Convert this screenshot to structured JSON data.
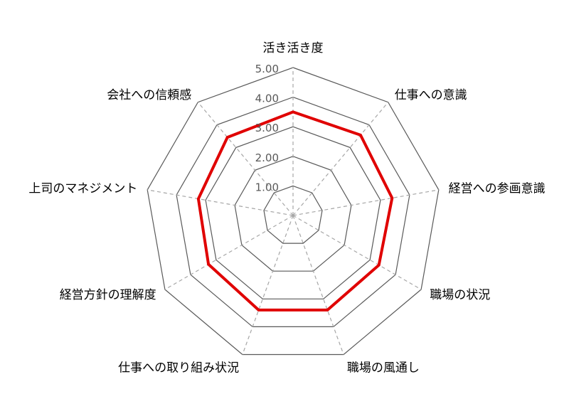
{
  "chart_data": {
    "type": "radar",
    "categories": [
      "活き活き度",
      "仕事への意識",
      "経営への参画意識",
      "職場の状況",
      "職場の風通し",
      "仕事への取り組み状況",
      "経営方針の理解度",
      "上司のマネジメント",
      "会社への信頼感"
    ],
    "series": [
      {
        "values": [
          3.5,
          3.55,
          3.4,
          3.35,
          3.4,
          3.4,
          3.3,
          3.25,
          3.45
        ],
        "color": "#e00000"
      }
    ],
    "rlim": [
      0,
      5
    ],
    "ticks": [
      1,
      2,
      3,
      4,
      5
    ],
    "tick_labels": [
      "1.00",
      "2.00",
      "3.00",
      "4.00",
      "5.00"
    ],
    "grid": true,
    "grid_color": "#595959",
    "spoke_color": "#a6a6a6",
    "title": "",
    "legend": "none"
  }
}
